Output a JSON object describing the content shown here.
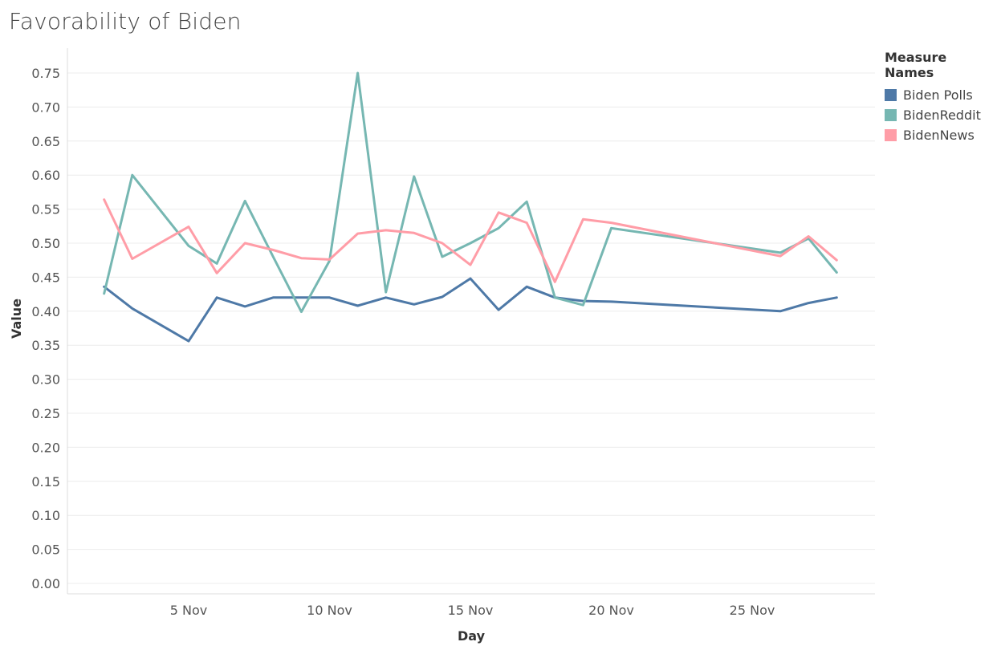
{
  "chart_data": {
    "type": "line",
    "title": "Favorability of Biden",
    "xlabel": "Day",
    "ylabel": "Value",
    "ylim": [
      0,
      0.75
    ],
    "x_ticks": [
      {
        "day": 5,
        "label": "5 Nov"
      },
      {
        "day": 10,
        "label": "10 Nov"
      },
      {
        "day": 15,
        "label": "15 Nov"
      },
      {
        "day": 20,
        "label": "20 Nov"
      },
      {
        "day": 25,
        "label": "25 Nov"
      }
    ],
    "y_ticks": [
      "0.00",
      "0.05",
      "0.10",
      "0.15",
      "0.20",
      "0.25",
      "0.30",
      "0.35",
      "0.40",
      "0.45",
      "0.50",
      "0.55",
      "0.60",
      "0.65",
      "0.70",
      "0.75"
    ],
    "legend": {
      "title": "Measure Names",
      "position": "top-right"
    },
    "grid": true,
    "series": [
      {
        "name": "Biden Polls",
        "color": "#4e79a7",
        "points": [
          [
            2,
            0.436
          ],
          [
            3,
            0.404
          ],
          [
            5,
            0.356
          ],
          [
            6,
            0.42
          ],
          [
            7,
            0.407
          ],
          [
            8,
            0.42
          ],
          [
            9,
            0.42
          ],
          [
            10,
            0.42
          ],
          [
            11,
            0.408
          ],
          [
            12,
            0.42
          ],
          [
            13,
            0.41
          ],
          [
            14,
            0.421
          ],
          [
            15,
            0.448
          ],
          [
            16,
            0.402
          ],
          [
            17,
            0.436
          ],
          [
            18,
            0.42
          ],
          [
            19,
            0.415
          ],
          [
            20,
            0.414
          ],
          [
            26,
            0.4
          ],
          [
            27,
            0.412
          ],
          [
            28,
            0.42
          ]
        ]
      },
      {
        "name": "BidenReddit",
        "color": "#76b7b2",
        "points": [
          [
            2,
            0.426
          ],
          [
            3,
            0.6
          ],
          [
            5,
            0.496
          ],
          [
            6,
            0.47
          ],
          [
            7,
            0.562
          ],
          [
            8,
            0.48
          ],
          [
            9,
            0.399
          ],
          [
            10,
            0.474
          ],
          [
            11,
            0.75
          ],
          [
            12,
            0.428
          ],
          [
            13,
            0.598
          ],
          [
            14,
            0.48
          ],
          [
            15,
            0.5
          ],
          [
            16,
            0.522
          ],
          [
            17,
            0.561
          ],
          [
            18,
            0.42
          ],
          [
            19,
            0.409
          ],
          [
            20,
            0.522
          ],
          [
            26,
            0.486
          ],
          [
            27,
            0.507
          ],
          [
            28,
            0.457
          ]
        ]
      },
      {
        "name": "BidenNews",
        "color": "#ff9da7",
        "points": [
          [
            2,
            0.564
          ],
          [
            3,
            0.477
          ],
          [
            5,
            0.524
          ],
          [
            6,
            0.456
          ],
          [
            7,
            0.5
          ],
          [
            8,
            0.49
          ],
          [
            9,
            0.478
          ],
          [
            10,
            0.476
          ],
          [
            11,
            0.514
          ],
          [
            12,
            0.519
          ],
          [
            13,
            0.515
          ],
          [
            14,
            0.5
          ],
          [
            15,
            0.468
          ],
          [
            16,
            0.545
          ],
          [
            17,
            0.53
          ],
          [
            18,
            0.443
          ],
          [
            19,
            0.535
          ],
          [
            20,
            0.53
          ],
          [
            26,
            0.481
          ],
          [
            27,
            0.51
          ],
          [
            28,
            0.475
          ]
        ]
      }
    ]
  }
}
